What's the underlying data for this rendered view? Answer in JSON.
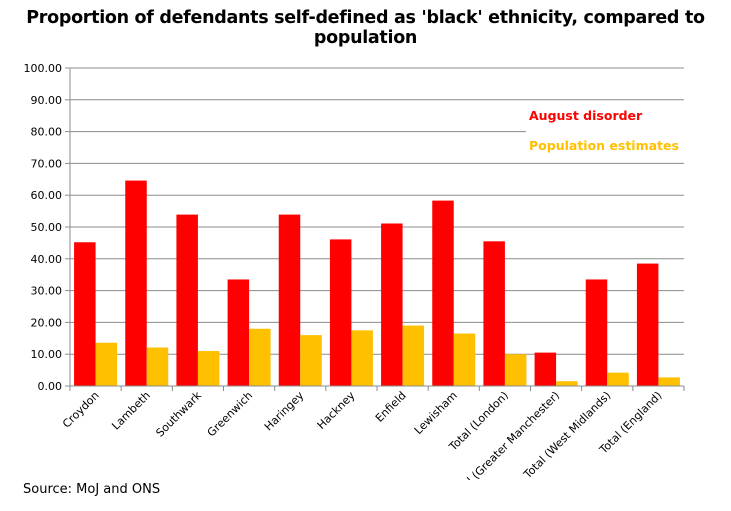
{
  "title": "Proportion of defendants self-defined as 'black' ethnicity, compared to population",
  "source": "Source: MoJ and ONS",
  "chart_data": {
    "type": "bar",
    "categories": [
      "Croydon",
      "Lambeth",
      "Southwark",
      "Greenwich",
      "Haringey",
      "Hackney",
      "Enfield",
      "Lewisham",
      "Total (London)",
      "Total (Greater Manchester)",
      "Total (West Midlands)",
      "Total (England)"
    ],
    "series": [
      {
        "name": "August disorder",
        "color": "#ff0000",
        "values": [
          45.2,
          64.6,
          53.9,
          33.5,
          53.9,
          46.1,
          51.1,
          58.3,
          45.5,
          10.5,
          33.5,
          38.5
        ]
      },
      {
        "name": "Population estimates",
        "color": "#ffc000",
        "values": [
          13.6,
          12.1,
          11.0,
          18.0,
          16.0,
          17.5,
          19.0,
          16.5,
          10.0,
          1.5,
          4.2,
          2.7
        ]
      }
    ],
    "ylim": [
      0,
      100
    ],
    "yticks": [
      "0.00",
      "10.00",
      "20.00",
      "30.00",
      "40.00",
      "50.00",
      "60.00",
      "70.00",
      "80.00",
      "90.00",
      "100.00"
    ],
    "grid": true,
    "legend_position": "right, upper"
  }
}
